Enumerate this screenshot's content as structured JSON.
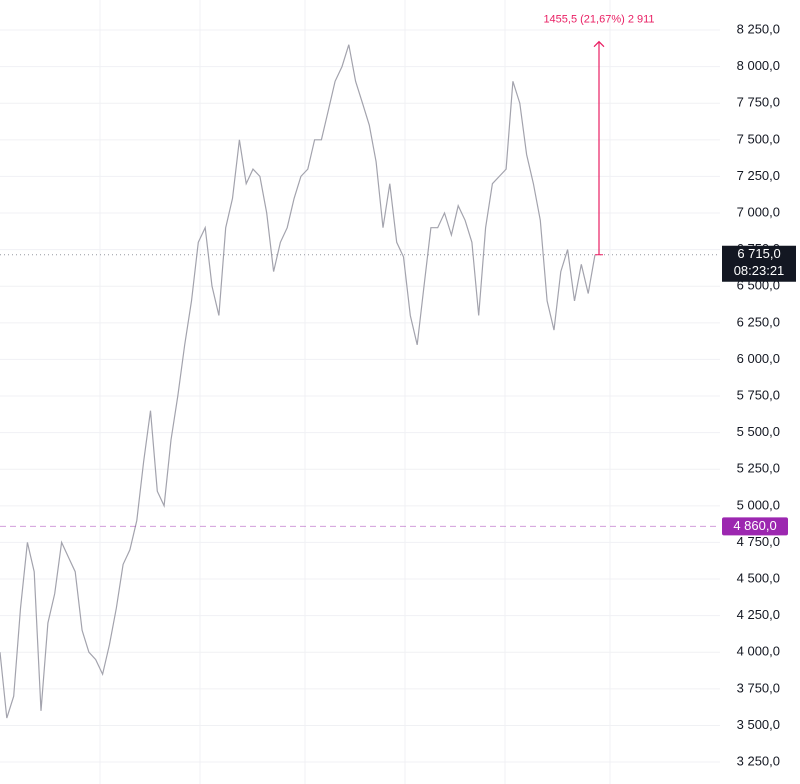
{
  "chart_data": {
    "type": "line",
    "series": [
      {
        "color": "#a3a3ad",
        "values": [
          4000,
          3550,
          3700,
          4300,
          4750,
          4550,
          3600,
          4200,
          4400,
          4750,
          4650,
          4550,
          4150,
          4000,
          3950,
          3850,
          4050,
          4300,
          4600,
          4700,
          4900,
          5300,
          5650,
          5100,
          5000,
          5450,
          5750,
          6100,
          6400,
          6800,
          6900,
          6500,
          6300,
          6900,
          7100,
          7500,
          7200,
          7300,
          7250,
          7000,
          6600,
          6800,
          6900,
          7100,
          7250,
          7300,
          7500,
          7500,
          7700,
          7900,
          8000,
          8150,
          7900,
          7750,
          7600,
          7350,
          6900,
          7200,
          6800,
          6700,
          6300,
          6100,
          6500,
          6900,
          6900,
          7000,
          6850,
          7050,
          6950,
          6800,
          6300,
          6900,
          7200,
          7250,
          7300,
          7900,
          7750,
          7400,
          7200,
          6950,
          6400,
          6200,
          6600,
          6750,
          6400,
          6650,
          6450,
          6715
        ]
      }
    ],
    "ylim": [
      3100,
      8455
    ],
    "yticks": [
      {
        "value": 3250,
        "label": "3 250,0"
      },
      {
        "value": 3500,
        "label": "3 500,0"
      },
      {
        "value": 3750,
        "label": "3 750,0"
      },
      {
        "value": 4000,
        "label": "4 000,0"
      },
      {
        "value": 4250,
        "label": "4 250,0"
      },
      {
        "value": 4500,
        "label": "4 500,0"
      },
      {
        "value": 4750,
        "label": "4 750,0"
      },
      {
        "value": 5000,
        "label": "5 000,0"
      },
      {
        "value": 5250,
        "label": "5 250,0"
      },
      {
        "value": 5500,
        "label": "5 500,0"
      },
      {
        "value": 5750,
        "label": "5 750,0"
      },
      {
        "value": 6000,
        "label": "6 000,0"
      },
      {
        "value": 6250,
        "label": "6 250,0"
      },
      {
        "value": 6500,
        "label": "6 500,0"
      },
      {
        "value": 6750,
        "label": "6 750,0"
      },
      {
        "value": 7000,
        "label": "7 000,0"
      },
      {
        "value": 7250,
        "label": "7 250,0"
      },
      {
        "value": 7500,
        "label": "7 500,0"
      },
      {
        "value": 7750,
        "label": "7 750,0"
      },
      {
        "value": 8000,
        "label": "8 000,0"
      },
      {
        "value": 8250,
        "label": "8 250,0"
      }
    ],
    "grid": true,
    "current_price": {
      "value": 6715,
      "label": "6 715,0",
      "color": "#131722"
    },
    "countdown": "08:23:21",
    "reference_price": {
      "value": 4860,
      "label": "4 860,0",
      "color": "#9c27b0"
    },
    "measurement": {
      "label": "1455,5 (21,67%) 2 911",
      "from": 6715,
      "to": 8170.5,
      "color": "#e91e63"
    }
  }
}
